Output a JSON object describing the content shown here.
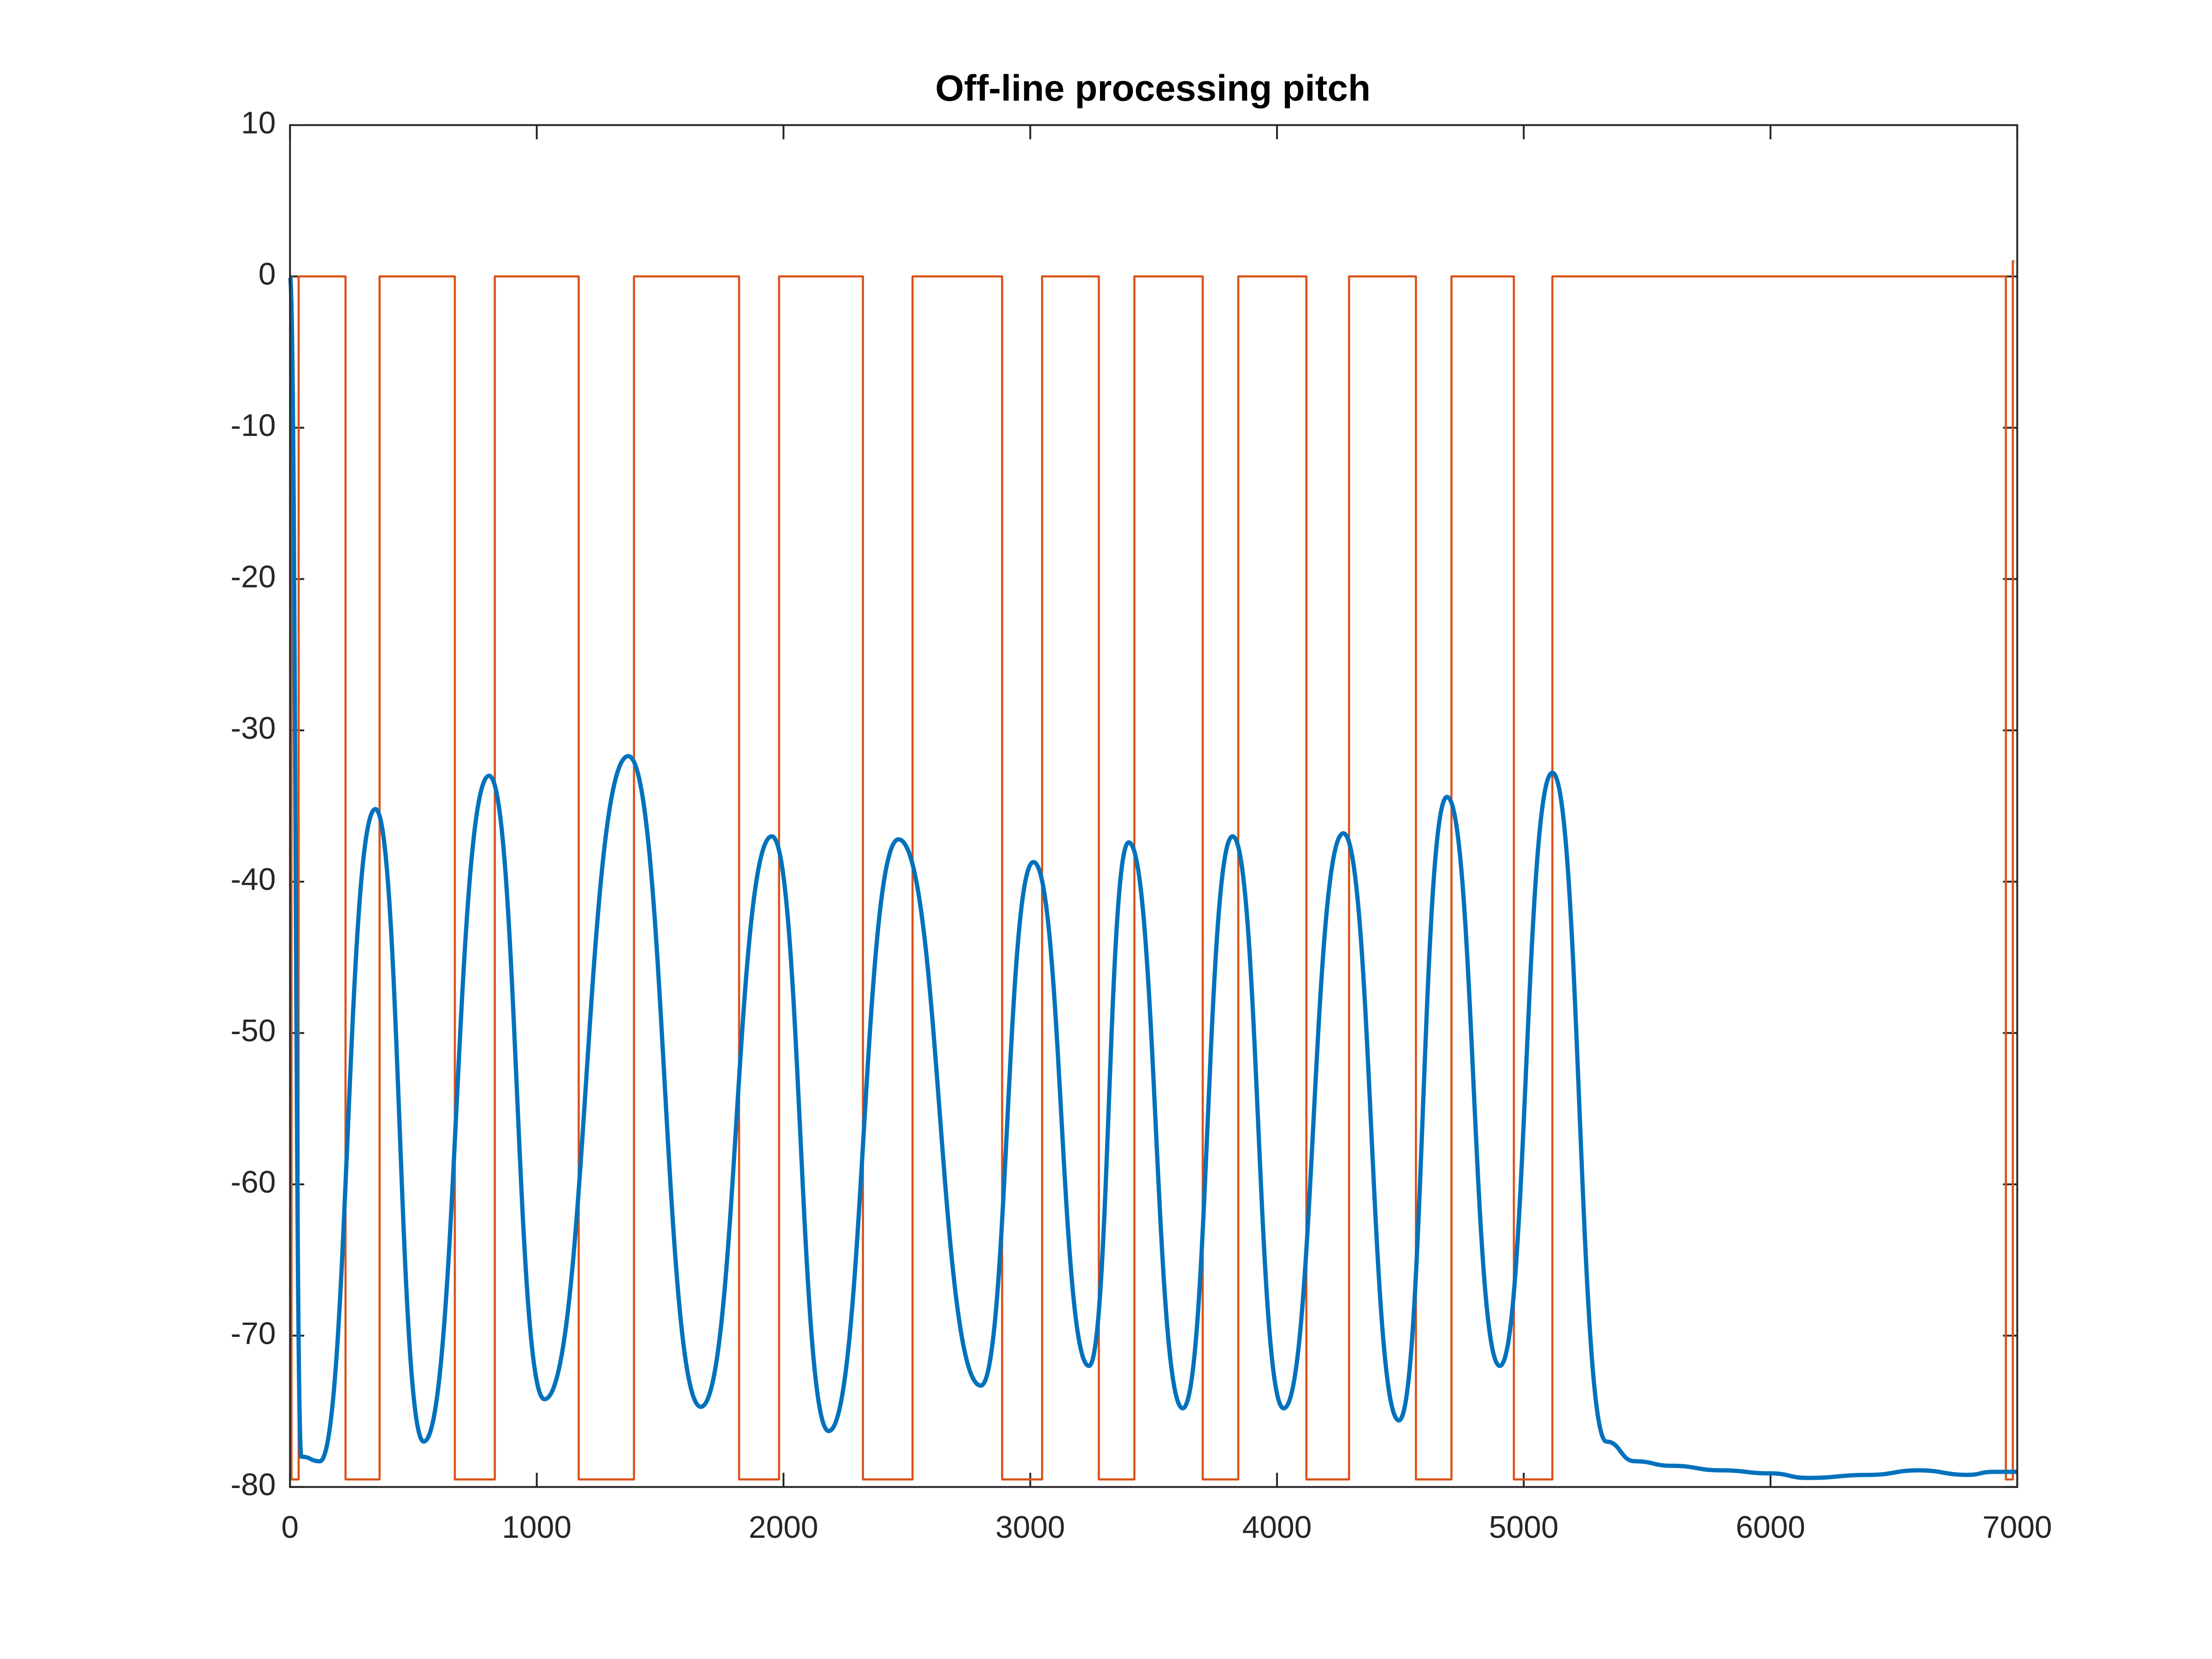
{
  "chart_data": {
    "type": "line",
    "title": "Off-line processing pitch",
    "xlim": [
      0,
      7000
    ],
    "xticks": [
      0,
      1000,
      2000,
      3000,
      4000,
      5000,
      6000,
      7000
    ],
    "ylim": [
      -80,
      10
    ],
    "yticks": [
      -80,
      -70,
      -60,
      -50,
      -40,
      -30,
      -20,
      -10,
      0,
      10
    ],
    "grid": false,
    "series": [
      {
        "color": "#0072BD",
        "line_width": 3,
        "x": [
          0,
          46,
          121,
          346,
          542,
          807,
          1031,
          1371,
          1665,
          1953,
          2183,
          2466,
          2800,
          3013,
          3238,
          3399,
          3618,
          3820,
          4027,
          4269,
          4494,
          4689,
          4903,
          5116,
          5335,
          5450,
          5600,
          5800,
          6000,
          6150,
          6400,
          6600,
          6800,
          6900,
          7000
        ],
        "values": [
          0,
          -78,
          -78.3,
          -35.2,
          -77,
          -33,
          -74.2,
          -31.7,
          -74.7,
          -37,
          -76.3,
          -37.2,
          -73.3,
          -38.7,
          -72,
          -37.4,
          -74.8,
          -37,
          -74.8,
          -36.8,
          -75.6,
          -34.4,
          -72,
          -32.8,
          -77,
          -78.3,
          -78.6,
          -78.9,
          -79.1,
          -79.4,
          -79.2,
          -78.9,
          -79.2,
          -79,
          -79
        ]
      },
      {
        "color": "#D95319",
        "line_width": 1.5,
        "x": [
          0,
          6,
          6,
          35,
          35,
          225,
          225,
          363,
          363,
          668,
          668,
          830,
          830,
          1170,
          1170,
          1394,
          1394,
          1820,
          1820,
          1982,
          1982,
          2322,
          2322,
          2523,
          2523,
          2886,
          2886,
          3048,
          3048,
          3278,
          3278,
          3422,
          3422,
          3699,
          3699,
          3843,
          3843,
          4119,
          4119,
          4292,
          4292,
          4563,
          4563,
          4707,
          4707,
          4960,
          4960,
          5116,
          5116,
          6954,
          6954,
          6982,
          6982,
          6988
        ],
        "values": [
          0,
          0,
          -79.5,
          -79.5,
          0,
          0,
          -79.5,
          -79.5,
          0,
          0,
          -79.5,
          -79.5,
          0,
          0,
          -79.5,
          -79.5,
          0,
          0,
          -79.5,
          -79.5,
          0,
          0,
          -79.5,
          -79.5,
          0,
          0,
          -79.5,
          -79.5,
          0,
          0,
          -79.5,
          -79.5,
          0,
          0,
          -79.5,
          -79.5,
          0,
          0,
          -79.5,
          -79.5,
          0,
          0,
          -79.5,
          -79.5,
          0,
          0,
          -79.5,
          -79.5,
          0,
          0,
          -79.5,
          -79.5,
          1,
          1
        ]
      }
    ]
  }
}
